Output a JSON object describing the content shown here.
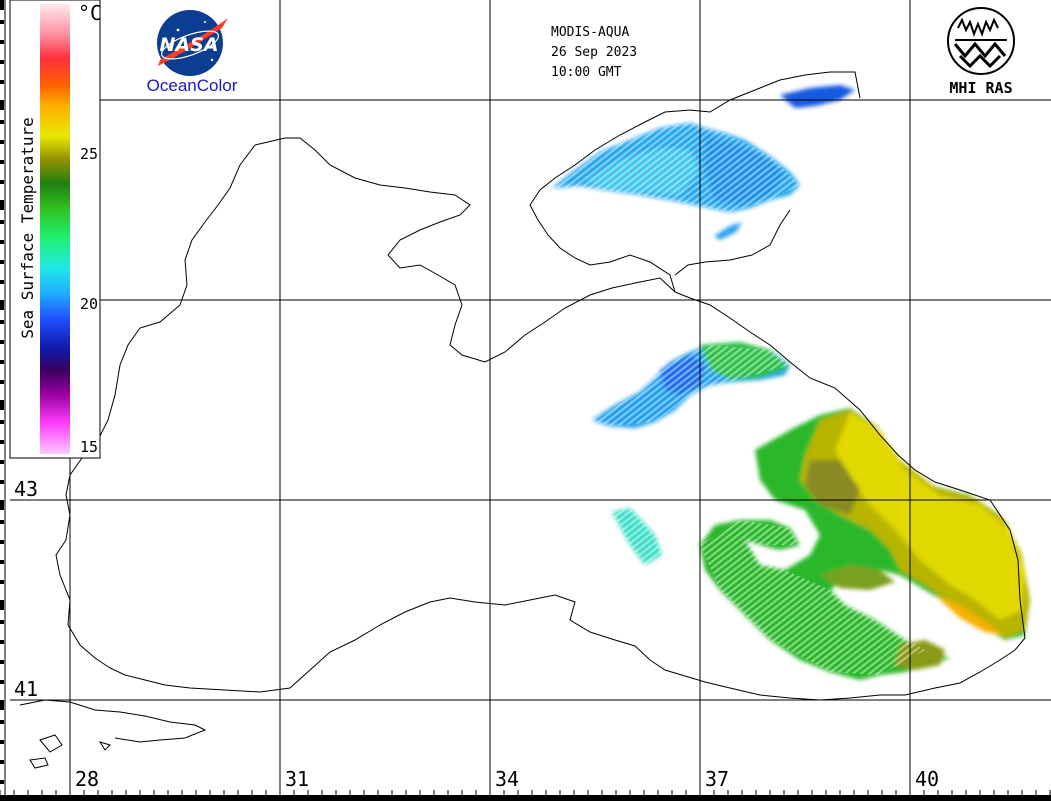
{
  "header": {
    "satellite": "MODIS-AQUA",
    "date": "26 Sep 2023",
    "time": "10:00 GMT"
  },
  "logos": {
    "nasa": {
      "text": "NASA",
      "caption": "OceanColor"
    },
    "mhi": {
      "caption": "MHI RAS"
    }
  },
  "colorbar": {
    "title": "Sea Surface Temperature",
    "unit": "°C",
    "min": 15,
    "max": 30,
    "ticks": [
      "25",
      "20",
      "15"
    ],
    "tick_values": [
      25,
      20,
      15
    ],
    "stops": [
      {
        "v": 15,
        "c": "#ffc8ff"
      },
      {
        "v": 16,
        "c": "#ff40ff"
      },
      {
        "v": 17,
        "c": "#9a00a0"
      },
      {
        "v": 17.8,
        "c": "#380060"
      },
      {
        "v": 18.5,
        "c": "#1018a8"
      },
      {
        "v": 19.5,
        "c": "#2050ff"
      },
      {
        "v": 20.3,
        "c": "#20a8ff"
      },
      {
        "v": 21.2,
        "c": "#20e8e8"
      },
      {
        "v": 22.2,
        "c": "#20f070"
      },
      {
        "v": 23.2,
        "c": "#30c020"
      },
      {
        "v": 24,
        "c": "#208010"
      },
      {
        "v": 24.8,
        "c": "#909000"
      },
      {
        "v": 25.6,
        "c": "#e8e800"
      },
      {
        "v": 26.6,
        "c": "#ffb000"
      },
      {
        "v": 27.3,
        "c": "#ff6000"
      },
      {
        "v": 28.2,
        "c": "#ff3040"
      },
      {
        "v": 29,
        "c": "#ff90a0"
      },
      {
        "v": 30,
        "c": "#ffe8ee"
      }
    ]
  },
  "grid": {
    "lon_labels": [
      "28",
      "31",
      "34",
      "37",
      "40"
    ],
    "lat_labels": [
      "43",
      "41"
    ]
  },
  "colors": {
    "coast": "#000000",
    "grid": "#000000",
    "background": "#ffffff"
  }
}
